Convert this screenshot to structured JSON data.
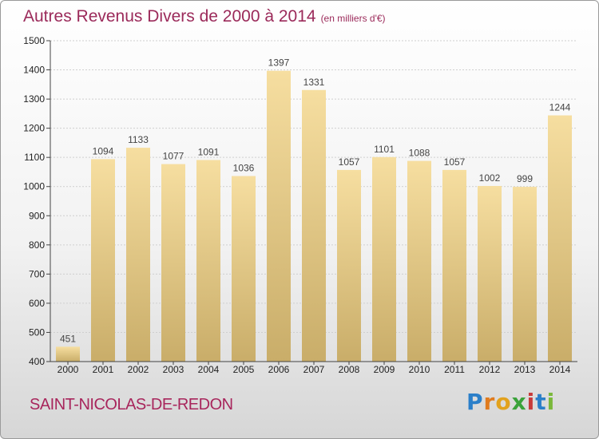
{
  "title": "Autres Revenus Divers de 2000 à 2014",
  "subtitle": "(en milliers d'€)",
  "place": "SAINT-NICOLAS-DE-REDON",
  "logo": "Proxiti",
  "colors": {
    "bar_top": "#f6dea0",
    "bar_bottom": "#c9ad69",
    "title": "#9b2a5a",
    "axis": "#444444",
    "grid": "#cfcfcf"
  },
  "chart_data": {
    "type": "bar",
    "title": "Autres Revenus Divers de 2000 à 2014",
    "categories": [
      "2000",
      "2001",
      "2002",
      "2003",
      "2004",
      "2005",
      "2006",
      "2007",
      "2008",
      "2009",
      "2010",
      "2011",
      "2012",
      "2013",
      "2014"
    ],
    "values": [
      451,
      1094,
      1133,
      1077,
      1091,
      1036,
      1397,
      1331,
      1057,
      1101,
      1088,
      1057,
      1002,
      999,
      1244
    ],
    "ylim": [
      400,
      1500
    ],
    "yticks": [
      400,
      500,
      600,
      700,
      800,
      900,
      1000,
      1100,
      1200,
      1300,
      1400,
      1500
    ],
    "grid": true,
    "xlabel": "",
    "ylabel": ""
  }
}
